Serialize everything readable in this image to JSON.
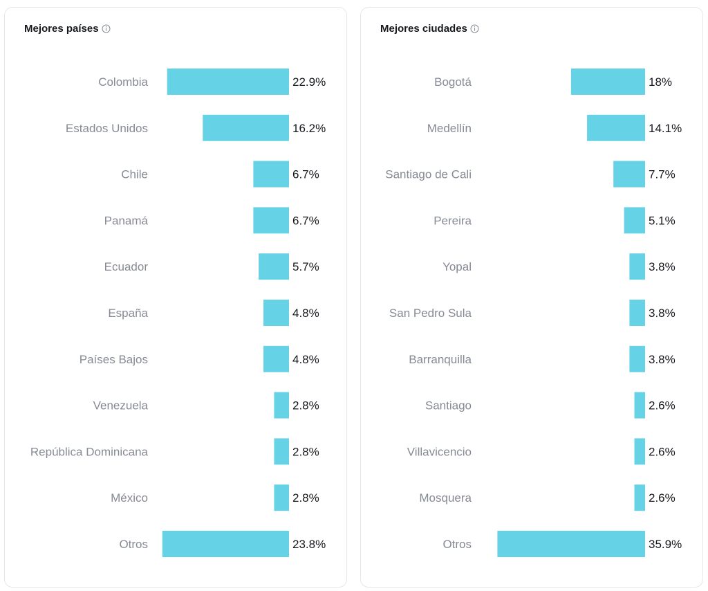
{
  "accent_color": "#66d2e6",
  "chart_data": [
    {
      "type": "bar",
      "orientation": "horizontal",
      "title": "Mejores países",
      "categories": [
        "Colombia",
        "Estados Unidos",
        "Chile",
        "Panamá",
        "Ecuador",
        "España",
        "Países Bajos",
        "Venezuela",
        "República Dominicana",
        "México",
        "Otros"
      ],
      "values": [
        22.9,
        16.2,
        6.7,
        6.7,
        5.7,
        4.8,
        4.8,
        2.8,
        2.8,
        2.8,
        23.8
      ],
      "value_labels": [
        "22.9%",
        "16.2%",
        "6.7%",
        "6.7%",
        "5.7%",
        "4.8%",
        "4.8%",
        "2.8%",
        "2.8%",
        "2.8%",
        "23.8%"
      ],
      "unit": "%",
      "grid": false
    },
    {
      "type": "bar",
      "orientation": "horizontal",
      "title": "Mejores ciudades",
      "categories": [
        "Bogotá",
        "Medellín",
        "Santiago de Cali",
        "Pereira",
        "Yopal",
        "San Pedro Sula",
        "Barranquilla",
        "Santiago",
        "Villavicencio",
        "Mosquera",
        "Otros"
      ],
      "values": [
        18,
        14.1,
        7.7,
        5.1,
        3.8,
        3.8,
        3.8,
        2.6,
        2.6,
        2.6,
        35.9
      ],
      "value_labels": [
        "18%",
        "14.1%",
        "7.7%",
        "5.1%",
        "3.8%",
        "3.8%",
        "3.8%",
        "2.6%",
        "2.6%",
        "2.6%",
        "35.9%"
      ],
      "unit": "%",
      "grid": false
    }
  ]
}
